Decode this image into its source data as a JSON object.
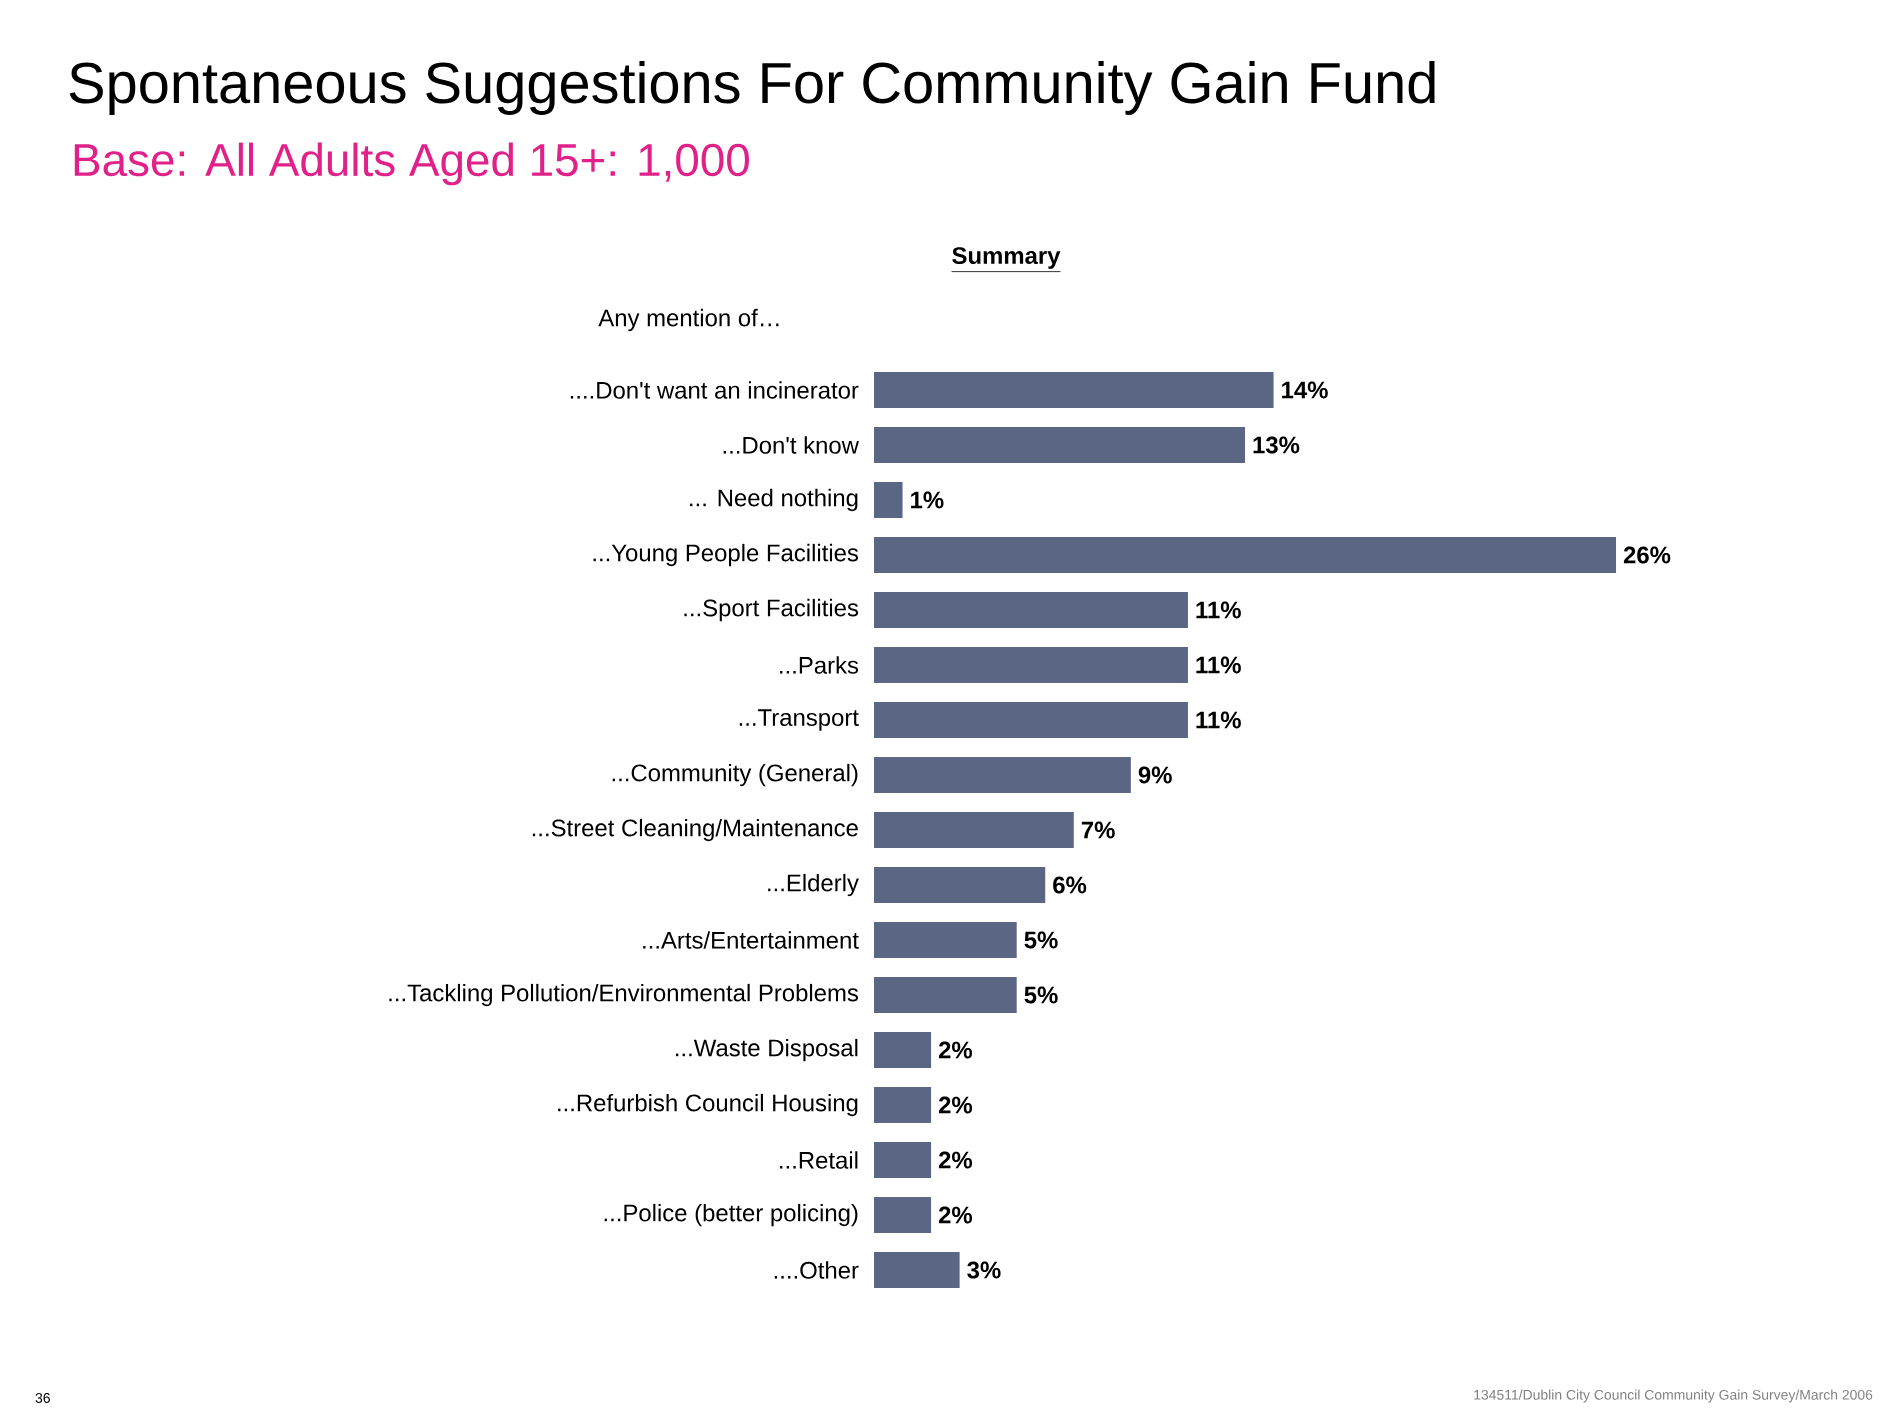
{
  "chart_data": {
    "type": "bar",
    "orientation": "horizontal",
    "title": "Spontaneous Suggestions For Community Gain Fund",
    "subtitle": "Base: All Adults Aged 15+: 1,000",
    "categories": [
      "....Don't want an incinerator",
      "...Don't know",
      "... Need nothing",
      "...Young People Facilities",
      "...Sport Facilities",
      "...Parks",
      "...Transport",
      "...Community (General)",
      "...Street Cleaning/Maintenance",
      "...Elderly",
      "...Arts/Entertainment",
      "...Tackling Pollution/Environmental Problems",
      "...Waste Disposal",
      "...Refurbish Council Housing",
      "...Retail",
      "...Police (better policing)",
      "....Other"
    ],
    "values": [
      14,
      13,
      1,
      26,
      11,
      11,
      11,
      9,
      7,
      6,
      5,
      5,
      2,
      2,
      2,
      2,
      3
    ],
    "value_labels": [
      "14%",
      "13%",
      "1%",
      "26%",
      "11%",
      "11%",
      "11%",
      "9%",
      "7%",
      "6%",
      "5%",
      "5%",
      "2%",
      "2%",
      "2%",
      "2%",
      "3%"
    ],
    "color": "#5b6684",
    "annotations": [
      "Summary",
      "Any mention of…",
      "36",
      "134511/Dublin City Council Community Gain Survey/March 2006"
    ]
  }
}
